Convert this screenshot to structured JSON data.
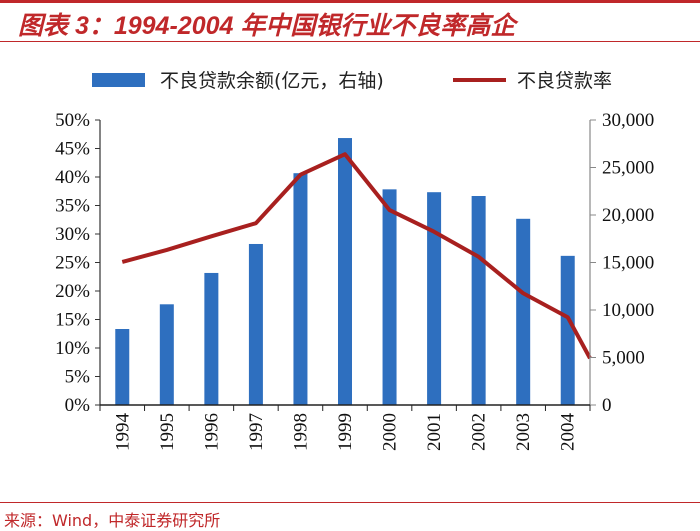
{
  "title": "图表 3：1994-2004 年中国银行业不良率高企",
  "source": "来源：Wind，中泰证券研究所",
  "colors": {
    "bar": "#2e6fbf",
    "line": "#a8201f",
    "accent": "#c0282a"
  },
  "chart_data": {
    "type": "bar+line",
    "categories": [
      "1994",
      "1995",
      "1996",
      "1997",
      "1998",
      "1999",
      "2000",
      "2001",
      "2002",
      "2003",
      "2004"
    ],
    "series": [
      {
        "name": "不良贷款余额(亿元，右轴)",
        "type": "bar",
        "axis": "right",
        "values": [
          8000,
          10600,
          13900,
          16950,
          24400,
          28100,
          22700,
          22400,
          22000,
          19600,
          15700
        ]
      },
      {
        "name": "不良贷款率",
        "type": "line",
        "axis": "left",
        "values": [
          25.1,
          27.2,
          29.6,
          31.9,
          40.4,
          44.0,
          34.2,
          30.4,
          26.0,
          19.6,
          15.4
        ],
        "continues_to_right_edge_at": 8.2
      }
    ],
    "left_axis": {
      "range": [
        0,
        50
      ],
      "ticks": [
        "0%",
        "5%",
        "10%",
        "15%",
        "20%",
        "25%",
        "30%",
        "35%",
        "40%",
        "45%",
        "50%"
      ]
    },
    "right_axis": {
      "range": [
        0,
        30000
      ],
      "ticks": [
        "0",
        "5,000",
        "10,000",
        "15,000",
        "20,000",
        "25,000",
        "30,000"
      ]
    },
    "legend": {
      "placement": "top",
      "entries": [
        "不良贷款余额(亿元，右轴)",
        "不良贷款率"
      ]
    },
    "grid": false
  }
}
